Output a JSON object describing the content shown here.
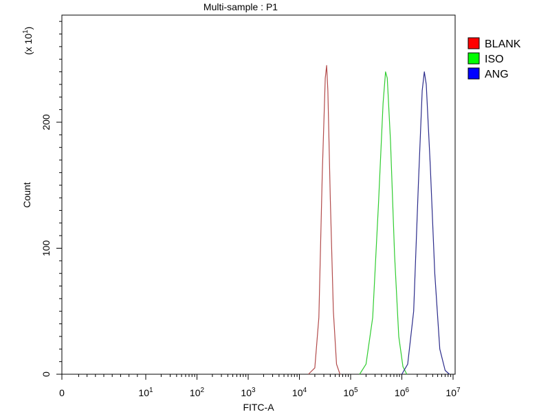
{
  "chart_data": {
    "type": "line",
    "title": "Multi-sample : P1",
    "xlabel": "FITC-A",
    "ylabel": "Count",
    "y_multiplier_label": "(x 10",
    "y_multiplier_exp": "1",
    "y_multiplier_close": ")",
    "x_scale": "log (biexponential)",
    "xlim": [
      0,
      10000000
    ],
    "ylim": [
      0,
      285
    ],
    "x_ticks": [
      {
        "value": 0,
        "base": "0",
        "exp": ""
      },
      {
        "value": 10,
        "base": "10",
        "exp": "1"
      },
      {
        "value": 100,
        "base": "10",
        "exp": "2"
      },
      {
        "value": 1000,
        "base": "10",
        "exp": "3"
      },
      {
        "value": 10000,
        "base": "10",
        "exp": "4"
      },
      {
        "value": 100000,
        "base": "10",
        "exp": "5"
      },
      {
        "value": 1000000,
        "base": "10",
        "exp": "6"
      },
      {
        "value": 10000000,
        "base": "10",
        "exp": "7"
      }
    ],
    "y_ticks": [
      {
        "value": 0,
        "label": "0"
      },
      {
        "value": 100,
        "label": "100"
      },
      {
        "value": 200,
        "label": "200"
      }
    ],
    "legend_position": "right",
    "series": [
      {
        "name": "BLANK",
        "color": "#ff0000",
        "stroke": "#b24a4a",
        "x": [
          15000,
          20000,
          24000,
          28000,
          32000,
          34000,
          36000,
          40000,
          46000,
          53000,
          62000
        ],
        "y": [
          0,
          5,
          45,
          160,
          235,
          245,
          225,
          140,
          50,
          8,
          0
        ]
      },
      {
        "name": "ISO",
        "color": "#00ff00",
        "stroke": "#2ecc2e",
        "x": [
          150000,
          200000,
          270000,
          350000,
          430000,
          480000,
          520000,
          600000,
          720000,
          870000,
          1050000,
          1250000
        ],
        "y": [
          0,
          8,
          45,
          135,
          215,
          240,
          235,
          185,
          95,
          30,
          6,
          0
        ]
      },
      {
        "name": "ANG",
        "color": "#0000ff",
        "stroke": "#2a2a8a",
        "x": [
          1000000,
          1300000,
          1700000,
          2100000,
          2500000,
          2750000,
          3000000,
          3600000,
          4400000,
          5500000,
          7000000,
          8500000
        ],
        "y": [
          0,
          8,
          50,
          150,
          225,
          240,
          230,
          165,
          80,
          20,
          3,
          0
        ]
      }
    ]
  }
}
